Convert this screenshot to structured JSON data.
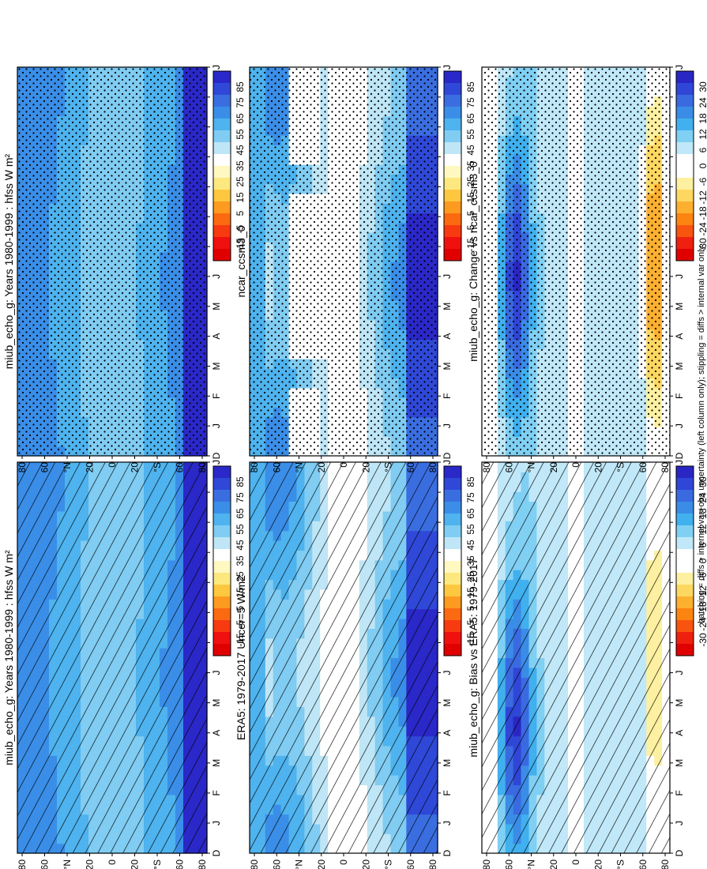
{
  "months": [
    "J",
    "F",
    "M",
    "A",
    "M",
    "J",
    "J",
    "A",
    "S",
    "O",
    "N",
    "D",
    "J"
  ],
  "month_start": "D",
  "lat_ticks": [
    "80",
    "60",
    "°N",
    "20",
    "0",
    "20",
    "°S",
    "60",
    "80"
  ],
  "footnote": "hatching = diffs > internal var+obs uncertainty (left column only); stippling = diffs > internal var only",
  "colors": {
    "ramp_abs": [
      "#e00000",
      "#f01010",
      "#f83a10",
      "#fb6a10",
      "#fd9a20",
      "#fdc840",
      "#fde880",
      "#fff8c0",
      "#ffffff",
      "#bfe6f6",
      "#80ccf2",
      "#4eb3ee",
      "#3a8ee8",
      "#3a6ee0",
      "#2f48d8",
      "#2a28c8"
    ],
    "ramp_diff": [
      "#e00000",
      "#f02010",
      "#f85410",
      "#fc8410",
      "#fdb030",
      "#fdd860",
      "#fdf0a0",
      "#ffffff",
      "#ffffff",
      "#c0e8f8",
      "#80d0f4",
      "#40b0ee",
      "#3a8ce6",
      "#3a6ae0",
      "#2f46d6",
      "#2a26c4"
    ]
  },
  "chart_data": [
    {
      "type": "heatmap",
      "title": "miub_echo_g: Years 1980-1999 : hfss W m²",
      "panel": "model",
      "overlay": "hatching",
      "colorbar_labels": [
        "85",
        "75",
        "65",
        "55",
        "45",
        "35",
        "25",
        "15",
        "5",
        "-5",
        "-15"
      ],
      "lat_ticks": [
        "80",
        "60",
        "°N",
        "20",
        "0",
        "20",
        "°S",
        "60",
        "80"
      ]
    },
    {
      "type": "heatmap",
      "title": "miub_echo_g: Years 1980-1999 : hfss W m²",
      "panel": "model",
      "overlay": "stippling",
      "colorbar_labels": [
        "85",
        "75",
        "65",
        "55",
        "45",
        "35",
        "25",
        "15",
        "5",
        "-5",
        "-15"
      ]
    },
    {
      "type": "heatmap",
      "title": "ERA5: 1979-2017 Uncer=5 W/m2",
      "panel": "obs",
      "overlay": "hatching",
      "colorbar_labels": [
        "85",
        "75",
        "65",
        "55",
        "45",
        "35",
        "25",
        "15",
        "5",
        "-5",
        "-15"
      ]
    },
    {
      "type": "heatmap",
      "title": "ncar_ccsm3_0",
      "panel": "model2",
      "overlay": "stippling",
      "colorbar_labels": [
        "85",
        "75",
        "65",
        "55",
        "45",
        "35",
        "25",
        "15",
        "5",
        "-5",
        "-15"
      ]
    },
    {
      "type": "heatmap",
      "title": "miub_echo_g: Bias vs ERA5: 1979-2017",
      "panel": "bias",
      "overlay": "hatching",
      "colorbar_labels": [
        "30",
        "24",
        "18",
        "12",
        "6",
        "0",
        "-6",
        "-12",
        "-18",
        "-24",
        "-30"
      ]
    },
    {
      "type": "heatmap",
      "title": "miub_echo_g: Change vs ncar_ccsm3_0",
      "panel": "change",
      "overlay": "stippling",
      "colorbar_labels": [
        "30",
        "24",
        "18",
        "12",
        "6",
        "0",
        "-6",
        "-12",
        "-18",
        "-24",
        "-30"
      ]
    }
  ]
}
